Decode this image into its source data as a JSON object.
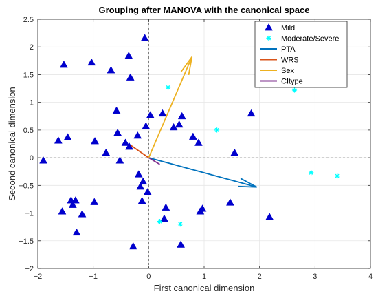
{
  "chart_data": {
    "type": "scatter",
    "title": "Grouping after MANOVA with the canonical space",
    "xlabel": "First canonical dimension",
    "ylabel": "Second canonical dimension",
    "xlim": [
      -2,
      4
    ],
    "ylim": [
      -2,
      2.5
    ],
    "xticks": [
      -2,
      -1,
      0,
      1,
      2,
      3,
      4
    ],
    "yticks": [
      -2,
      -1.5,
      -1,
      -0.5,
      0,
      0.5,
      1,
      1.5,
      2,
      2.5
    ],
    "xtick_labels": [
      "−2",
      "−1",
      "0",
      "1",
      "2",
      "3",
      "4"
    ],
    "ytick_labels": [
      "−2",
      "−1.5",
      "−1",
      "−0.5",
      "0",
      "0.5",
      "1",
      "1.5",
      "2",
      "2.5"
    ],
    "grid": true,
    "legend_position": "top-right",
    "series": [
      {
        "name": "Mild",
        "marker": "triangle",
        "color": "#0000CD",
        "points": [
          [
            -1.9,
            -0.05
          ],
          [
            -1.53,
            1.68
          ],
          [
            -1.63,
            0.31
          ],
          [
            -1.46,
            0.37
          ],
          [
            -1.56,
            -0.97
          ],
          [
            -1.4,
            -0.77
          ],
          [
            -1.37,
            -0.85
          ],
          [
            -1.32,
            -0.77
          ],
          [
            -1.3,
            -1.35
          ],
          [
            -1.2,
            -1.02
          ],
          [
            -1.03,
            1.72
          ],
          [
            -0.97,
            0.3
          ],
          [
            -0.98,
            -0.8
          ],
          [
            -0.77,
            0.09
          ],
          [
            -0.68,
            1.58
          ],
          [
            -0.58,
            0.85
          ],
          [
            -0.56,
            0.45
          ],
          [
            -0.52,
            -0.05
          ],
          [
            -0.42,
            0.27
          ],
          [
            -0.36,
            1.84
          ],
          [
            -0.35,
            0.2
          ],
          [
            -0.33,
            1.45
          ],
          [
            -0.28,
            -1.6
          ],
          [
            -0.2,
            0.4
          ],
          [
            -0.18,
            -0.3
          ],
          [
            -0.15,
            -0.52
          ],
          [
            -0.12,
            -0.78
          ],
          [
            -0.1,
            -0.43
          ],
          [
            -0.07,
            2.16
          ],
          [
            -0.05,
            0.57
          ],
          [
            -0.02,
            -0.62
          ],
          [
            0.03,
            0.77
          ],
          [
            0.25,
            0.8
          ],
          [
            0.31,
            -0.9
          ],
          [
            0.28,
            -1.1
          ],
          [
            0.45,
            0.55
          ],
          [
            0.55,
            0.6
          ],
          [
            0.6,
            0.75
          ],
          [
            0.58,
            -1.57
          ],
          [
            0.8,
            0.38
          ],
          [
            0.9,
            0.27
          ],
          [
            0.93,
            -0.97
          ],
          [
            0.97,
            -0.92
          ],
          [
            1.47,
            -0.81
          ],
          [
            1.55,
            0.09
          ],
          [
            1.85,
            0.8
          ],
          [
            2.18,
            -1.07
          ]
        ]
      },
      {
        "name": "Moderate/Severe",
        "marker": "asterisk",
        "color": "#00FFFF",
        "points": [
          [
            0.35,
            1.27
          ],
          [
            0.2,
            -1.15
          ],
          [
            0.57,
            -1.2
          ],
          [
            1.23,
            0.5
          ],
          [
            2.63,
            1.22
          ],
          [
            2.93,
            -0.27
          ],
          [
            3.4,
            -0.33
          ]
        ]
      }
    ],
    "vectors": [
      {
        "name": "PTA",
        "color": "#0072BD",
        "x": 1.95,
        "y": -0.53
      },
      {
        "name": "WRS",
        "color": "#D95319",
        "x": -0.33,
        "y": 0.23
      },
      {
        "name": "Sex",
        "color": "#EDB120",
        "x": 0.78,
        "y": 1.82
      },
      {
        "name": "CItype",
        "color": "#7E2F8E",
        "x": 0.2,
        "y": -0.12
      }
    ]
  }
}
